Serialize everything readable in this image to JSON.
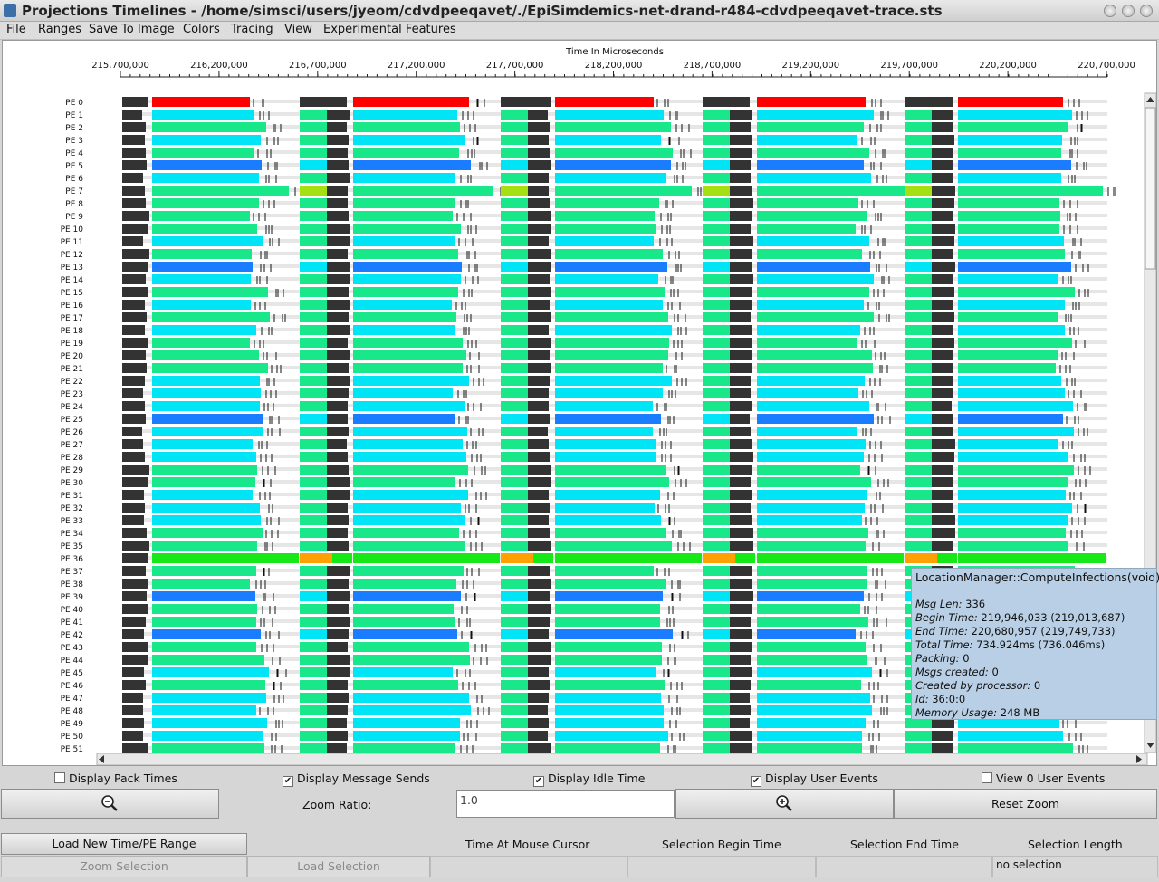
{
  "window": {
    "title": "Projections Timelines - /home/simsci/users/jyeom/cdvdpeeqavet/./EpiSimdemics-net-drand-r484-cdvdpeeqavet-trace.sts"
  },
  "menu": [
    "File",
    "Ranges",
    "Save To Image",
    "Colors",
    "Tracing",
    "View",
    "Experimental Features"
  ],
  "timeline": {
    "axis_title": "Time In Microseconds",
    "ticks": [
      "215,700,000",
      "216,200,000",
      "216,700,000",
      "217,200,000",
      "217,700,000",
      "218,200,000",
      "218,700,000",
      "219,200,000",
      "219,700,000",
      "220,200,000",
      "220,700,000"
    ],
    "pe_labels": [
      "PE 0",
      "PE 1",
      "PE 2",
      "PE 3",
      "PE 4",
      "PE 5",
      "PE 6",
      "PE 7",
      "PE 8",
      "PE 9",
      "PE 10",
      "PE 11",
      "PE 12",
      "PE 13",
      "PE 14",
      "PE 15",
      "PE 16",
      "PE 17",
      "PE 18",
      "PE 19",
      "PE 20",
      "PE 21",
      "PE 22",
      "PE 23",
      "PE 24",
      "PE 25",
      "PE 26",
      "PE 27",
      "PE 28",
      "PE 29",
      "PE 30",
      "PE 31",
      "PE 32",
      "PE 33",
      "PE 34",
      "PE 35",
      "PE 36",
      "PE 37",
      "PE 38",
      "PE 39",
      "PE 40",
      "PE 41",
      "PE 42",
      "PE 43",
      "PE 44",
      "PE 45",
      "PE 46",
      "PE 47",
      "PE 48",
      "PE 49",
      "PE 50",
      "PE 51"
    ],
    "colors": {
      "pe0": "#ff0000",
      "cyan": "#00e5f5",
      "green": "#18e88a",
      "blue": "#1a7cff",
      "pe36": "#17e817",
      "orange": "#ffa100",
      "lime": "#a5e013",
      "idle": "#333333",
      "gap": "#e6e6e6"
    }
  },
  "tooltip": {
    "title": "LocationManager::ComputeInfections(void)",
    "lines": [
      {
        "label": "Msg Len:",
        "value": "336"
      },
      {
        "label": "Begin Time:",
        "value": "219,946,033 (219,013,687)"
      },
      {
        "label": "End Time:",
        "value": "220,680,957 (219,749,733)"
      },
      {
        "label": "Total Time:",
        "value": "734.924ms (736.046ms)"
      },
      {
        "label": "Packing:",
        "value": "0"
      },
      {
        "label": "Msgs created:",
        "value": "0"
      },
      {
        "label": "Created by processor:",
        "value": "0"
      },
      {
        "label": "Id:",
        "value": "36:0:0"
      },
      {
        "label": "Memory Usage:",
        "value": "248 MB"
      }
    ]
  },
  "controls": {
    "display_pack_times": "Display Pack Times",
    "display_message_sends": "Display Message Sends",
    "display_idle_time": "Display Idle Time",
    "display_user_events": "Display User Events",
    "view_user_events": "View 0 User Events",
    "zoom_ratio_label": "Zoom Ratio:",
    "zoom_ratio_value": "1.0",
    "reset_zoom": "Reset Zoom",
    "load_range": "Load New Time/PE Range",
    "time_at_cursor": "Time At Mouse Cursor",
    "selection_begin": "Selection Begin Time",
    "selection_end": "Selection End Time",
    "selection_length": "Selection Length",
    "zoom_selection": "Zoom Selection",
    "load_selection": "Load Selection",
    "selection_length_value": "no selection"
  }
}
